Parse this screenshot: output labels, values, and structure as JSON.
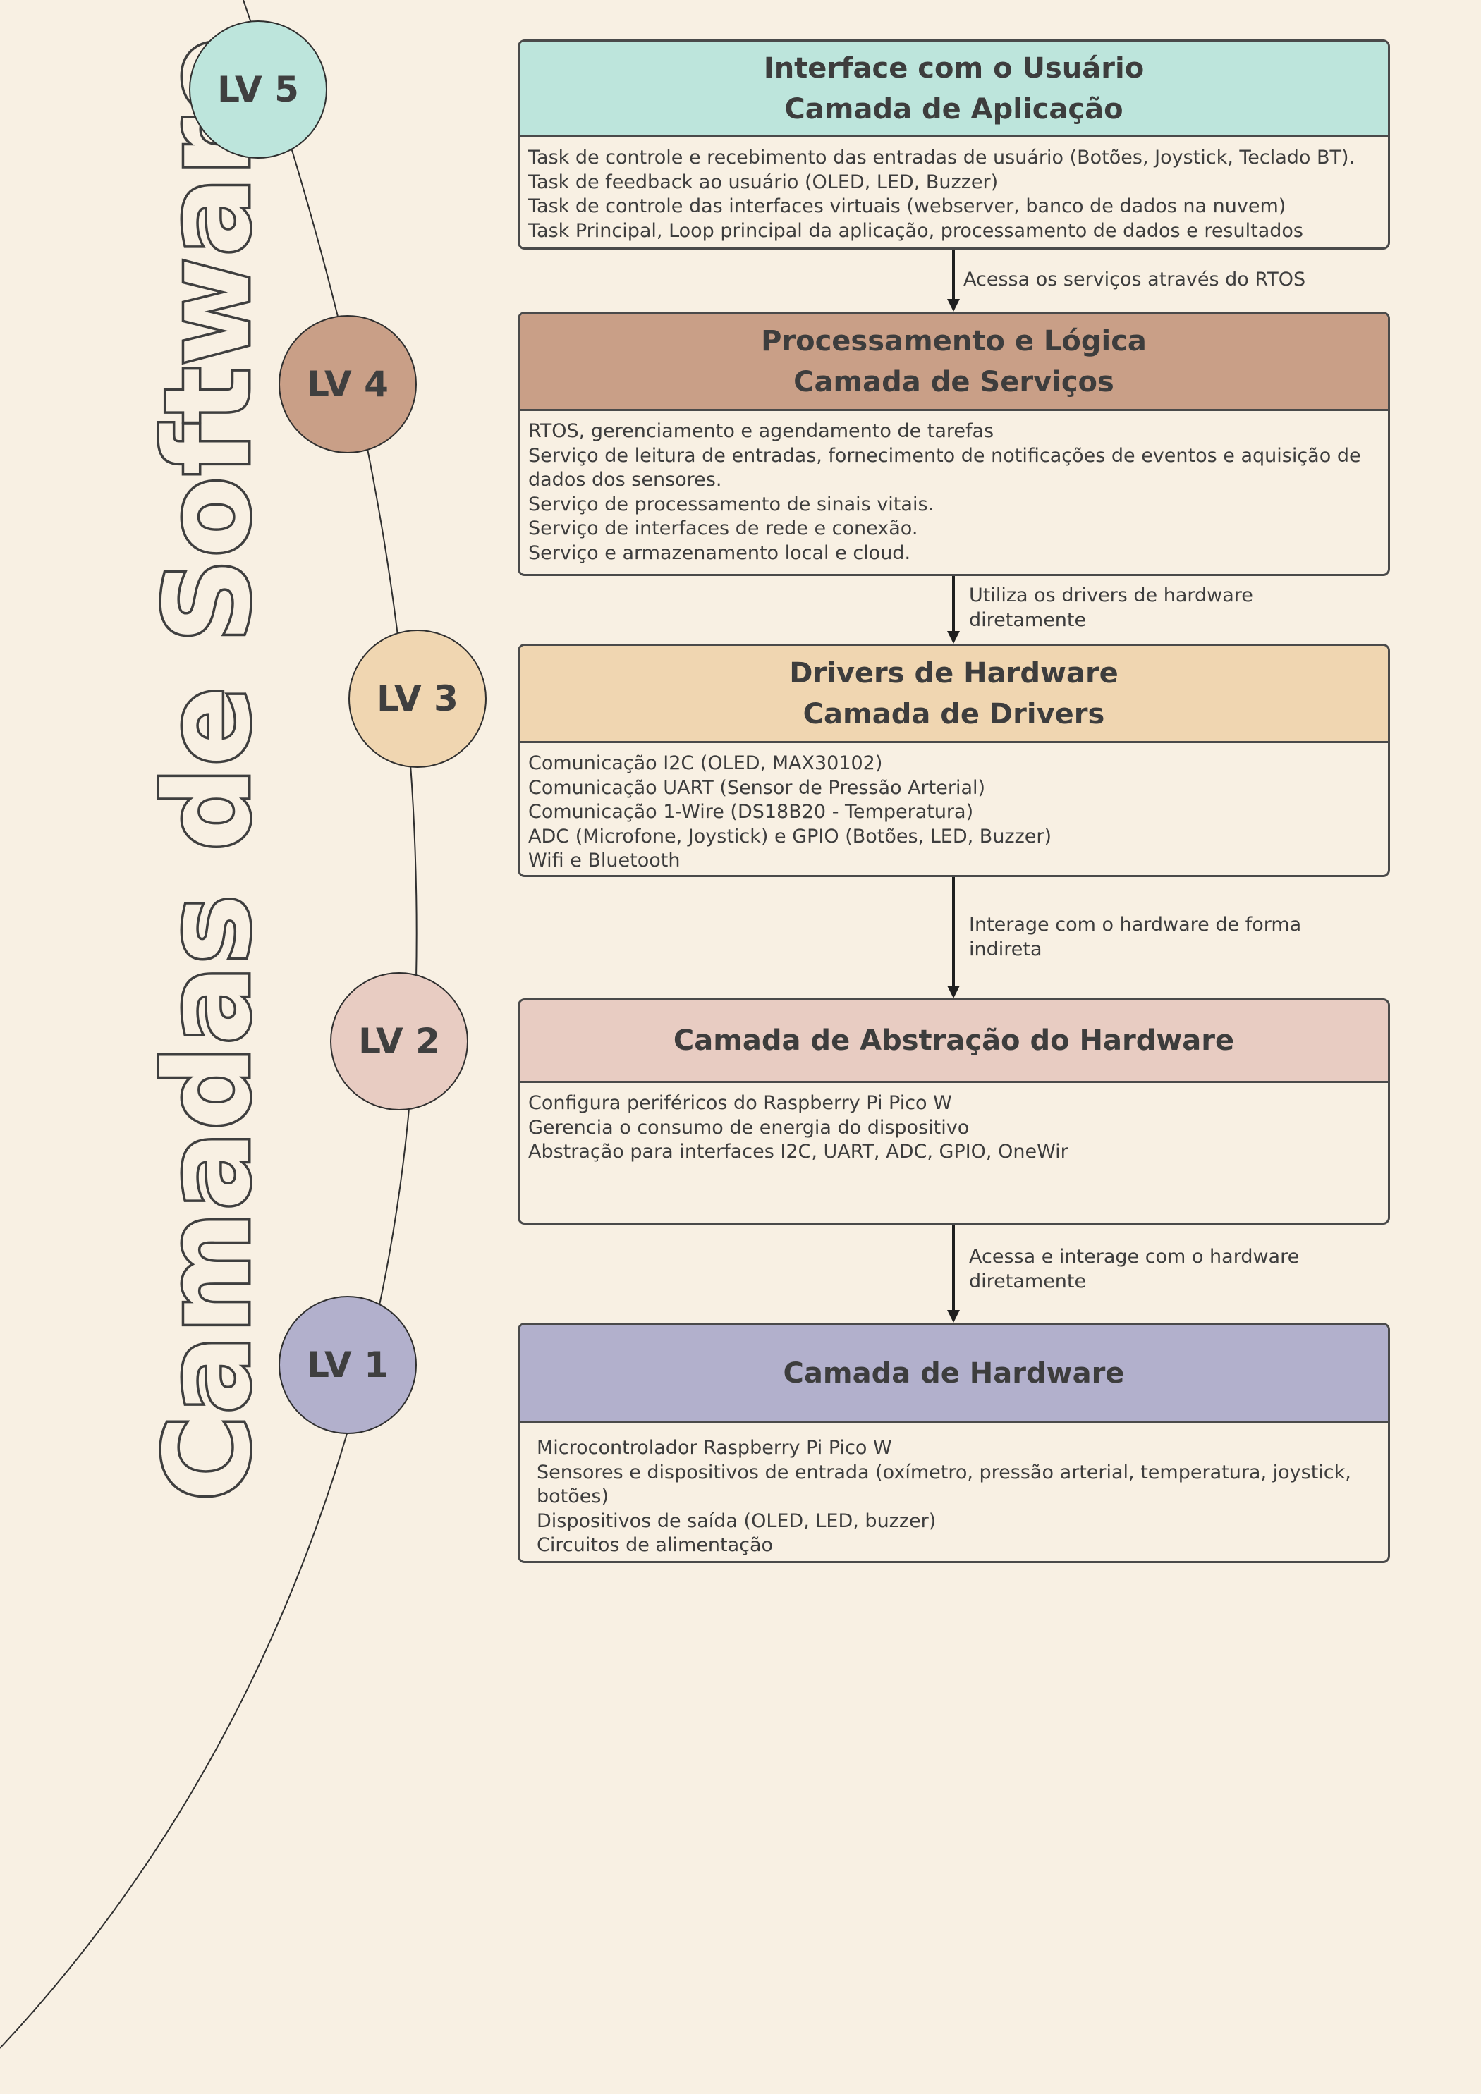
{
  "page_title": "Camadas de Software",
  "colors": {
    "background": "#F8F0E3",
    "lv5": "#BDE5DC",
    "lv4": "#C99F87",
    "lv3": "#F0D6B1",
    "lv2": "#E8CCC2",
    "lv1": "#B2B0CC"
  },
  "levels": [
    {
      "label": "LV 5"
    },
    {
      "label": "LV 4"
    },
    {
      "label": "LV 3"
    },
    {
      "label": "LV 2"
    },
    {
      "label": "LV 1"
    }
  ],
  "layers": [
    {
      "title1": "Interface com o Usuário",
      "title2": "Camada de Aplicação",
      "lines": [
        "Task de controle e recebimento das entradas de usuário (Botões, Joystick, Teclado  BT).",
        "Task de feedback ao usuário  (OLED, LED, Buzzer)",
        "Task de controle das interfaces virtuais (webserver, banco de dados na nuvem)",
        "Task Principal, Loop principal da aplicação, processamento de dados e resultados"
      ]
    },
    {
      "title1": "Processamento e Lógica",
      "title2": "Camada de Serviços",
      "lines": [
        "RTOS, gerenciamento e agendamento de tarefas",
        "Serviço de leitura de entradas, fornecimento de notificações de eventos  e aquisição de dados dos sensores.",
        "Serviço de processamento de sinais vitais.",
        "Serviço de interfaces de rede e conexão.",
        "Serviço e armazenamento local e cloud."
      ]
    },
    {
      "title1": "Drivers de Hardware",
      "title2": "Camada de Drivers",
      "lines": [
        "Comunicação I2C (OLED, MAX30102)",
        "Comunicação UART (Sensor de Pressão Arterial)",
        "Comunicação 1-Wire (DS18B20 - Temperatura)",
        "ADC (Microfone, Joystick) e GPIO (Botões, LED, Buzzer)",
        "Wifi e Bluetooth"
      ]
    },
    {
      "title1": "Camada de Abstração do Hardware",
      "title2": "",
      "lines": [
        "Configura periféricos do Raspberry Pi Pico W",
        "Gerencia o consumo de energia do dispositivo",
        "Abstração para interfaces I2C, UART, ADC, GPIO, OneWir"
      ]
    },
    {
      "title1": "Camada de Hardware",
      "title2": "",
      "lines": [
        "Microcontrolador Raspberry Pi Pico W",
        "Sensores e dispositivos de entrada (oxímetro, pressão arterial, temperatura, joystick, botões)",
        "Dispositivos de saída (OLED, LED, buzzer)",
        "Circuitos de alimentação"
      ]
    }
  ],
  "arrows": [
    {
      "line1": "Acessa os serviços através do RTOS",
      "line2": ""
    },
    {
      "line1": "Utiliza os drivers de hardware",
      "line2": "diretamente"
    },
    {
      "line1": "Interage com o hardware de forma",
      "line2": "indireta"
    },
    {
      "line1": "Acessa e interage com o hardware",
      "line2": "diretamente"
    }
  ]
}
